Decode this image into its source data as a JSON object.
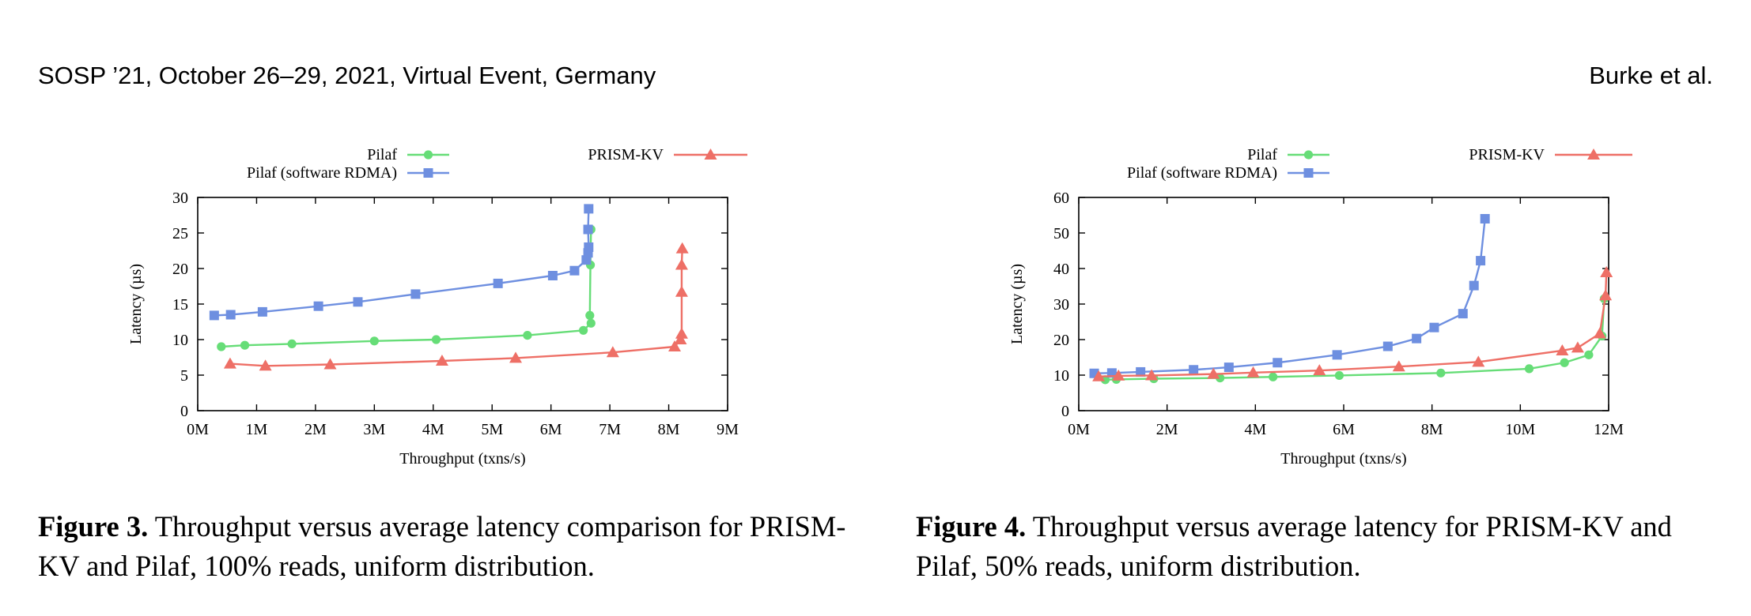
{
  "header": {
    "left": "SOSP ’21, October 26–29, 2021, Virtual Event, Germany",
    "right": "Burke et al."
  },
  "colors": {
    "pilaf": "#66dd77",
    "pilaf_soft": "#6e8fe0",
    "prism": "#ee6f66"
  },
  "figures": [
    {
      "number_label": "Figure 3.",
      "caption_text": " Throughput versus average latency comparison for PRISM-KV and Pilaf, 100% reads, uniform distribution."
    },
    {
      "number_label": "Figure 4.",
      "caption_text": " Throughput versus average latency for PRISM-KV and Pilaf, 50% reads, uniform distribution."
    }
  ],
  "chart_data": [
    {
      "type": "line",
      "title": "",
      "xlabel": "Throughput (txns/s)",
      "ylabel": "Latency (µs)",
      "xlim": [
        0,
        9
      ],
      "ylim": [
        0,
        30
      ],
      "xticks": [
        0,
        1,
        2,
        3,
        4,
        5,
        6,
        7,
        8,
        9
      ],
      "xtick_labels": [
        "0M",
        "1M",
        "2M",
        "3M",
        "4M",
        "5M",
        "6M",
        "7M",
        "8M",
        "9M"
      ],
      "yticks": [
        0,
        5,
        10,
        15,
        20,
        25,
        30
      ],
      "ytick_labels": [
        "0",
        "5",
        "10",
        "15",
        "20",
        "25",
        "30"
      ],
      "x_unit": "millions of txns/s",
      "legend_position": "top",
      "series": [
        {
          "name": "Pilaf",
          "marker": "circle",
          "color": "#66dd77",
          "x": [
            0.4,
            0.8,
            1.6,
            3.0,
            4.05,
            5.6,
            6.55,
            6.68,
            6.66,
            6.67,
            6.68
          ],
          "y": [
            9.0,
            9.2,
            9.4,
            9.8,
            10.0,
            10.6,
            11.3,
            12.3,
            13.4,
            20.5,
            25.5
          ]
        },
        {
          "name": "Pilaf (software RDMA)",
          "marker": "square",
          "color": "#6e8fe0",
          "x": [
            0.28,
            0.56,
            1.1,
            2.05,
            2.72,
            3.7,
            5.1,
            6.03,
            6.4,
            6.6,
            6.63,
            6.64,
            6.63,
            6.64
          ],
          "y": [
            13.4,
            13.5,
            13.9,
            14.7,
            15.3,
            16.4,
            17.9,
            19.0,
            19.7,
            21.2,
            22.2,
            23.0,
            25.5,
            28.4
          ]
        },
        {
          "name": "PRISM-KV",
          "marker": "triangle",
          "color": "#ee6f66",
          "x": [
            0.55,
            1.15,
            2.25,
            4.15,
            5.4,
            7.05,
            8.1,
            8.2,
            8.22,
            8.22,
            8.22,
            8.23
          ],
          "y": [
            6.6,
            6.3,
            6.5,
            7.0,
            7.4,
            8.2,
            9.0,
            10.0,
            10.8,
            16.7,
            20.5,
            22.8
          ]
        }
      ]
    },
    {
      "type": "line",
      "title": "",
      "xlabel": "Throughput (txns/s)",
      "ylabel": "Latency (µs)",
      "xlim": [
        0,
        12
      ],
      "ylim": [
        0,
        60
      ],
      "xticks": [
        0,
        2,
        4,
        6,
        8,
        10,
        12
      ],
      "xtick_labels": [
        "0M",
        "2M",
        "4M",
        "6M",
        "8M",
        "10M",
        "12M"
      ],
      "yticks": [
        0,
        10,
        20,
        30,
        40,
        50,
        60
      ],
      "ytick_labels": [
        "0",
        "10",
        "20",
        "30",
        "40",
        "50",
        "60"
      ],
      "x_unit": "millions of txns/s",
      "legend_position": "top",
      "series": [
        {
          "name": "Pilaf",
          "marker": "circle",
          "color": "#66dd77",
          "x": [
            0.6,
            0.85,
            1.7,
            3.2,
            4.4,
            5.9,
            8.2,
            10.2,
            11.0,
            11.55,
            11.85,
            11.9
          ],
          "y": [
            8.7,
            8.8,
            9.0,
            9.2,
            9.5,
            9.9,
            10.6,
            11.8,
            13.5,
            15.7,
            21.0,
            31.5
          ]
        },
        {
          "name": "Pilaf (software RDMA)",
          "marker": "square",
          "color": "#6e8fe0",
          "x": [
            0.35,
            0.75,
            1.4,
            2.6,
            3.4,
            4.5,
            5.85,
            7.0,
            7.65,
            8.05,
            8.7,
            8.95,
            9.1,
            9.2
          ],
          "y": [
            10.5,
            10.6,
            10.9,
            11.5,
            12.2,
            13.5,
            15.7,
            18.1,
            20.3,
            23.4,
            27.3,
            35.2,
            42.2,
            54.0
          ]
        },
        {
          "name": "PRISM-KV",
          "marker": "triangle",
          "color": "#ee6f66",
          "x": [
            0.45,
            0.9,
            1.65,
            3.05,
            3.95,
            5.45,
            7.25,
            9.05,
            10.95,
            11.3,
            11.8,
            11.93,
            11.95
          ],
          "y": [
            9.6,
            9.8,
            9.9,
            10.3,
            10.7,
            11.3,
            12.4,
            13.7,
            16.9,
            17.7,
            21.7,
            32.4,
            38.9
          ]
        }
      ]
    }
  ]
}
